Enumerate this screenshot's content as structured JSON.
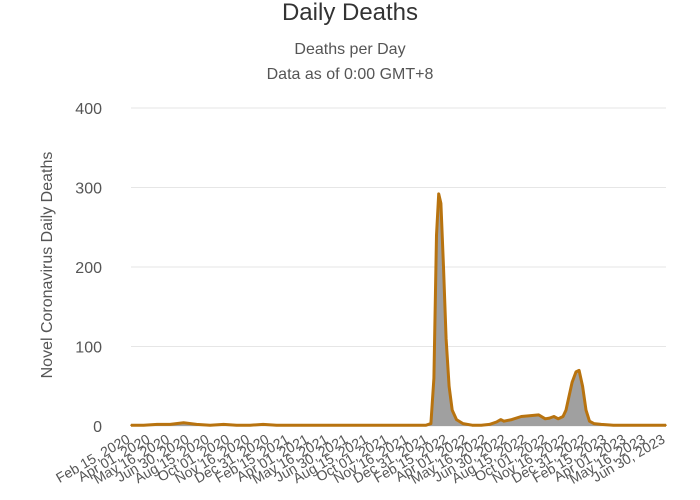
{
  "chart_data": {
    "type": "area",
    "title": "Daily Deaths",
    "subtitle": "Deaths per Day",
    "subtitle2": "Data as of 0:00 GMT+8",
    "ylabel": "Novel Coronavirus Daily Deaths",
    "ylim": [
      0,
      400
    ],
    "yticks": [
      0,
      100,
      200,
      300,
      400
    ],
    "grid": true,
    "xlim": [
      "2020-02-15",
      "2023-06-30"
    ],
    "x_tick_labels": [
      {
        "date": "2020-02-15",
        "label": "Feb 15, 2020"
      },
      {
        "date": "2020-04-01",
        "label": "Apr 01, 2020"
      },
      {
        "date": "2020-05-16",
        "label": "May 16, 2020"
      },
      {
        "date": "2020-06-30",
        "label": "Jun 30, 2020"
      },
      {
        "date": "2020-08-15",
        "label": "Aug 15, 2020"
      },
      {
        "date": "2020-10-01",
        "label": "Oct 01, 2020"
      },
      {
        "date": "2020-11-16",
        "label": "Nov 16, 2020"
      },
      {
        "date": "2020-12-31",
        "label": "Dec 31, 2020"
      },
      {
        "date": "2021-02-15",
        "label": "Feb 15, 2021"
      },
      {
        "date": "2021-04-01",
        "label": "Apr 01, 2021"
      },
      {
        "date": "2021-05-16",
        "label": "May 16, 2021"
      },
      {
        "date": "2021-06-30",
        "label": "Jun 30, 2021"
      },
      {
        "date": "2021-08-15",
        "label": "Aug 15, 2021"
      },
      {
        "date": "2021-10-01",
        "label": "Oct 01, 2021"
      },
      {
        "date": "2021-11-16",
        "label": "Nov 16, 2021"
      },
      {
        "date": "2021-12-31",
        "label": "Dec 31, 2021"
      },
      {
        "date": "2022-02-15",
        "label": "Feb 15, 2022"
      },
      {
        "date": "2022-04-01",
        "label": "Apr 01, 2022"
      },
      {
        "date": "2022-05-16",
        "label": "May 16, 2022"
      },
      {
        "date": "2022-06-30",
        "label": "Jun 30, 2022"
      },
      {
        "date": "2022-08-15",
        "label": "Aug 15, 2022"
      },
      {
        "date": "2022-10-01",
        "label": "Oct 01, 2022"
      },
      {
        "date": "2022-11-16",
        "label": "Nov 16, 2022"
      },
      {
        "date": "2022-12-31",
        "label": "Dec 31, 2022"
      },
      {
        "date": "2023-02-15",
        "label": "Feb 15, 2023"
      },
      {
        "date": "2023-04-01",
        "label": "Apr 01, 2023"
      },
      {
        "date": "2023-05-16",
        "label": "May 16, 2023"
      },
      {
        "date": "2023-06-30",
        "label": "Jun 30, 2023"
      }
    ],
    "series": [
      {
        "x": [
          "2020-02-15",
          "2020-03-15",
          "2020-04-15",
          "2020-05-15",
          "2020-06-15",
          "2020-07-15",
          "2020-08-15",
          "2020-09-15",
          "2020-10-15",
          "2020-11-15",
          "2020-12-15",
          "2021-01-15",
          "2021-03-15",
          "2021-05-15",
          "2021-07-15",
          "2021-09-15",
          "2021-11-15",
          "2021-12-25",
          "2022-01-05",
          "2022-01-12",
          "2022-01-18",
          "2022-01-23",
          "2022-01-28",
          "2022-02-03",
          "2022-02-09",
          "2022-02-16",
          "2022-02-23",
          "2022-03-05",
          "2022-03-20",
          "2022-04-10",
          "2022-05-01",
          "2022-05-20",
          "2022-06-05",
          "2022-06-15",
          "2022-06-22",
          "2022-07-10",
          "2022-08-01",
          "2022-08-20",
          "2022-09-10",
          "2022-09-25",
          "2022-10-05",
          "2022-10-15",
          "2022-10-25",
          "2022-11-05",
          "2022-11-12",
          "2022-11-18",
          "2022-11-26",
          "2022-12-05",
          "2022-12-12",
          "2022-12-20",
          "2022-12-28",
          "2023-01-05",
          "2023-01-15",
          "2023-02-01",
          "2023-03-01",
          "2023-04-01",
          "2023-05-01",
          "2023-06-30"
        ],
        "values": [
          1,
          1,
          2,
          2,
          4,
          2,
          1,
          2,
          1,
          1,
          2,
          1,
          1,
          1,
          1,
          1,
          1,
          1,
          3,
          60,
          240,
          292,
          280,
          200,
          110,
          50,
          20,
          8,
          3,
          1,
          1,
          2,
          5,
          8,
          6,
          8,
          12,
          13,
          14,
          9,
          10,
          12,
          9,
          12,
          20,
          35,
          55,
          68,
          70,
          50,
          20,
          6,
          3,
          2,
          1,
          1,
          1,
          1
        ]
      }
    ]
  }
}
